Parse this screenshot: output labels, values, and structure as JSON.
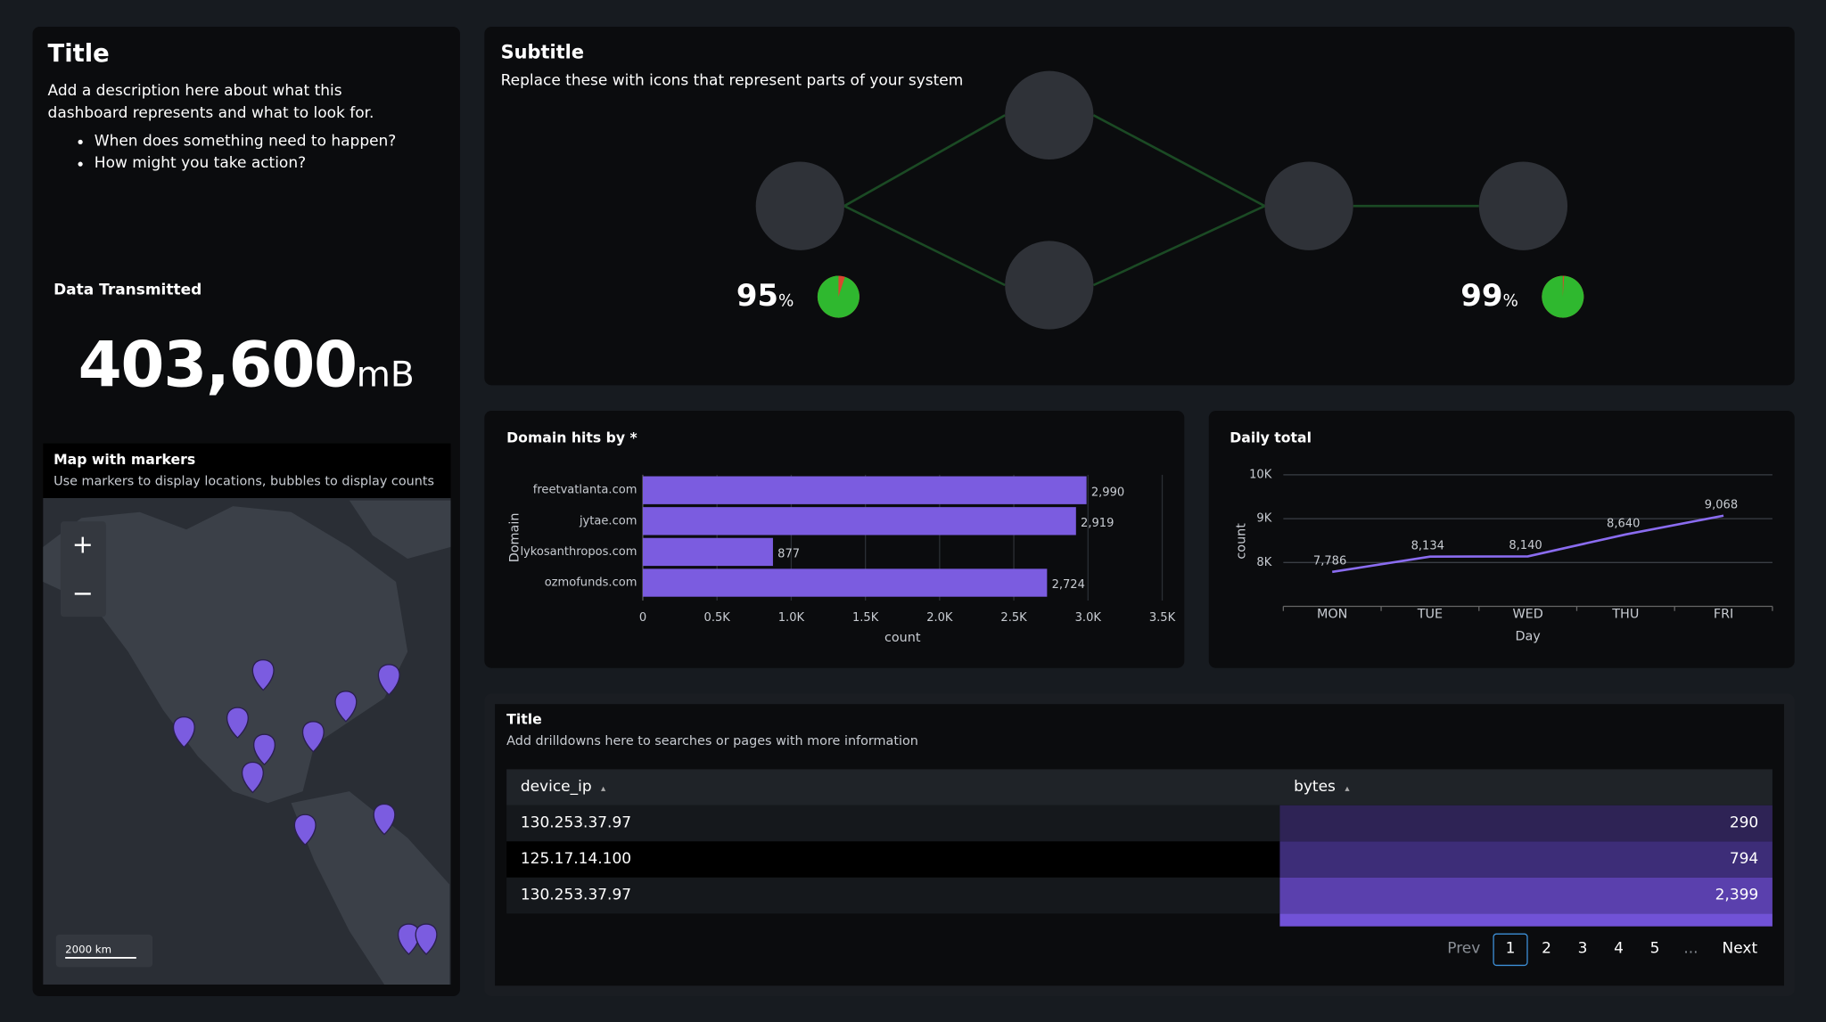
{
  "intro": {
    "title": "Title",
    "description": "Add a description here about what this dashboard represents and what to look for.",
    "bullets": [
      "When does something need to happen?",
      "How might you take action?"
    ]
  },
  "kpi": {
    "label": "Data Transmitted",
    "value": "403,600",
    "unit": "mB"
  },
  "map": {
    "title": "Map with markers",
    "subtitle": "Use markers to display locations, bubbles to display counts",
    "zoom_in": "+",
    "zoom_out": "−",
    "scale": "2000 km"
  },
  "diagram": {
    "title": "Subtitle",
    "subtitle": "Replace these with icons that represent parts of your system",
    "gauges": [
      {
        "value": 95,
        "unit": "%"
      },
      {
        "value": 99,
        "unit": "%"
      }
    ]
  },
  "chart_data": [
    {
      "type": "bar",
      "orientation": "horizontal",
      "title": "Domain hits by *",
      "categories": [
        "freetvatlanta.com",
        "jytae.com",
        "lykosanthropos.com",
        "ozmofunds.com"
      ],
      "values": [
        2990,
        2919,
        877,
        2724
      ],
      "value_labels": [
        "2,990",
        "2,919",
        "877",
        "2,724"
      ],
      "color": "#7b5ce0",
      "xlim": [
        0,
        3500
      ],
      "xticks": [
        0,
        {
          "value": 500,
          "label": "0.5K"
        },
        {
          "value": 1000,
          "label": "1.0K"
        },
        {
          "value": 1500,
          "label": "1.5K"
        },
        {
          "value": 2000,
          "label": "2.0K"
        },
        {
          "value": 2500,
          "label": "2.5K"
        },
        {
          "value": 3000,
          "label": "3.0K"
        },
        {
          "value": 3500,
          "label": "3.5K"
        }
      ],
      "x_label": "count",
      "y_label": "Domain",
      "grid": true
    },
    {
      "type": "line",
      "title": "Daily total",
      "categories": [
        "MON",
        "TUE",
        "WED",
        "THU",
        "FRI"
      ],
      "values": [
        7786,
        8134,
        8140,
        8640,
        9068
      ],
      "value_labels": [
        "7,786",
        "8,134",
        "8,140",
        "8,640",
        "9,068"
      ],
      "color": "#8a6cf0",
      "ylim": [
        7000,
        10000
      ],
      "yticks": [
        {
          "value": 8000,
          "label": "8K"
        },
        {
          "value": 9000,
          "label": "9K"
        },
        {
          "value": 10000,
          "label": "10K"
        }
      ],
      "x_label": "Day",
      "y_label": "count",
      "grid": true
    }
  ],
  "table": {
    "title": "Title",
    "subtitle": "Add drilldowns here to searches or pages with more information",
    "columns": [
      "device_ip",
      "bytes"
    ],
    "rows": [
      [
        "130.253.37.97",
        "290"
      ],
      [
        "125.17.14.100",
        "794"
      ],
      [
        "130.253.37.97",
        "2,399"
      ]
    ],
    "pagination": {
      "prev": "Prev",
      "pages": [
        "1",
        "2",
        "3",
        "4",
        "5"
      ],
      "ellipsis": "...",
      "next": "Next"
    }
  }
}
